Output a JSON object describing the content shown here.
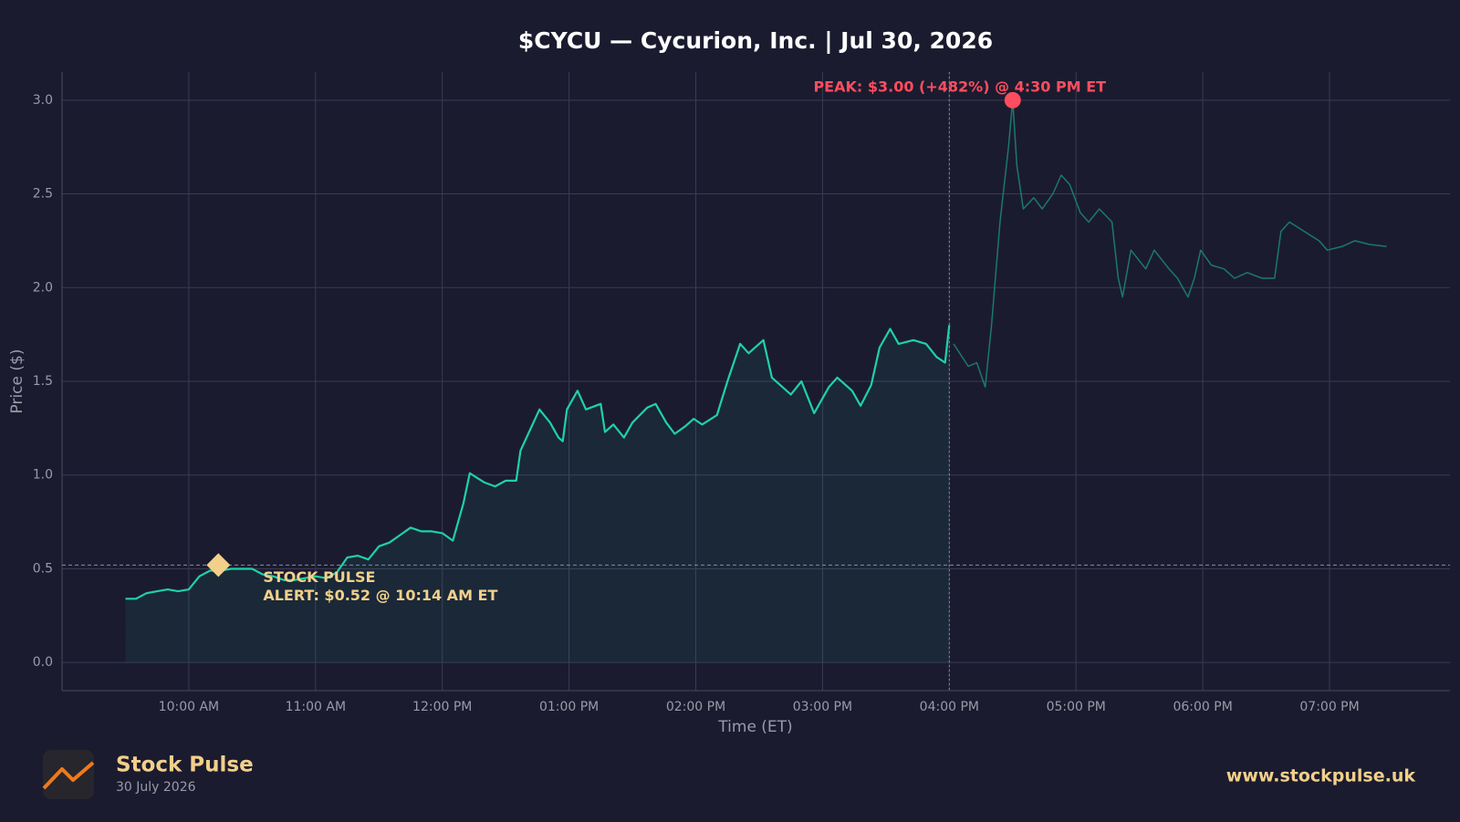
{
  "chart_data": {
    "type": "line",
    "title": "$CYCU — Cycurion, Inc.  |  Jul 30, 2026",
    "x_label": "Time (ET)",
    "y_label": "Price ($)",
    "xlim": [
      540,
      1197
    ],
    "ylim": [
      -0.15,
      3.15
    ],
    "xticks": [
      {
        "value": 600,
        "label": "10:00 AM"
      },
      {
        "value": 660,
        "label": "11:00 AM"
      },
      {
        "value": 720,
        "label": "12:00 PM"
      },
      {
        "value": 780,
        "label": "01:00 PM"
      },
      {
        "value": 840,
        "label": "02:00 PM"
      },
      {
        "value": 900,
        "label": "03:00 PM"
      },
      {
        "value": 960,
        "label": "04:00 PM"
      },
      {
        "value": 1020,
        "label": "05:00 PM"
      },
      {
        "value": 1080,
        "label": "06:00 PM"
      },
      {
        "value": 1140,
        "label": "07:00 PM"
      }
    ],
    "yticks": [
      {
        "value": 0,
        "label": "0.0"
      },
      0.5,
      {
        "value": 1,
        "label": "1.0"
      },
      1.5,
      {
        "value": 2,
        "label": "2.0"
      },
      2.5,
      {
        "value": 3,
        "label": "3.0"
      }
    ],
    "grid": true,
    "session_close": 960,
    "series": [
      {
        "color": "#1fd1a8",
        "fill": true,
        "x": [
          570,
          575,
          580,
          585,
          590,
          595,
          600,
          605,
          610,
          615,
          620,
          625,
          630,
          635,
          640,
          645,
          650,
          655,
          660,
          665,
          670,
          675,
          680,
          685,
          690,
          695,
          700,
          705,
          710,
          715,
          720,
          725,
          730,
          733,
          740,
          745,
          750,
          755,
          757,
          766,
          771,
          775,
          777,
          779,
          784,
          788,
          795,
          797,
          801,
          806,
          810,
          817,
          821,
          826,
          830,
          835,
          839,
          843,
          850,
          855,
          861,
          865,
          872,
          876,
          885,
          890,
          896,
          903,
          907,
          914,
          918,
          923,
          927,
          932,
          936,
          943,
          949,
          954,
          958,
          960
        ],
        "values": [
          0.34,
          0.34,
          0.37,
          0.38,
          0.39,
          0.38,
          0.39,
          0.46,
          0.49,
          0.49,
          0.5,
          0.5,
          0.5,
          0.47,
          0.46,
          0.44,
          0.44,
          0.45,
          0.46,
          0.45,
          0.48,
          0.56,
          0.57,
          0.55,
          0.62,
          0.64,
          0.68,
          0.72,
          0.7,
          0.7,
          0.69,
          0.65,
          0.85,
          1.01,
          0.96,
          0.94,
          0.97,
          0.97,
          1.13,
          1.35,
          1.28,
          1.2,
          1.18,
          1.35,
          1.45,
          1.35,
          1.38,
          1.23,
          1.27,
          1.2,
          1.28,
          1.36,
          1.38,
          1.28,
          1.22,
          1.26,
          1.3,
          1.27,
          1.32,
          1.5,
          1.7,
          1.65,
          1.72,
          1.52,
          1.43,
          1.5,
          1.33,
          1.47,
          1.52,
          1.45,
          1.37,
          1.48,
          1.68,
          1.78,
          1.7,
          1.72,
          1.7,
          1.63,
          1.6,
          1.8
        ]
      },
      {
        "color": "#1a7a68",
        "fill": false,
        "x": [
          962,
          969,
          973,
          977,
          980,
          984,
          988,
          990,
          992,
          995,
          1000,
          1004,
          1009,
          1013,
          1017,
          1022,
          1026,
          1031,
          1037,
          1040,
          1042,
          1046,
          1053,
          1057,
          1064,
          1068,
          1073,
          1076,
          1079,
          1084,
          1090,
          1095,
          1101,
          1108,
          1114,
          1117,
          1121,
          1128,
          1135,
          1139,
          1146,
          1152,
          1159,
          1167
        ],
        "values": [
          1.7,
          1.58,
          1.6,
          1.47,
          1.8,
          2.35,
          2.75,
          3.0,
          2.65,
          2.42,
          2.48,
          2.42,
          2.5,
          2.6,
          2.55,
          2.4,
          2.35,
          2.42,
          2.35,
          2.05,
          1.95,
          2.2,
          2.1,
          2.2,
          2.1,
          2.05,
          1.95,
          2.05,
          2.2,
          2.12,
          2.1,
          2.05,
          2.08,
          2.05,
          2.05,
          2.3,
          2.35,
          2.3,
          2.25,
          2.2,
          2.22,
          2.25,
          2.23,
          2.22
        ]
      }
    ],
    "annotations": [
      {
        "text": [
          "PEAK: $3.00 (+482%) @ 4:30 PM ET"
        ],
        "x": 990,
        "y": 3.0,
        "color": "#ff4d5e",
        "marker": "circle"
      },
      {
        "text": [
          "STOCK PULSE",
          "ALERT: $0.52 @ 10:14 AM ET"
        ],
        "x": 614,
        "y": 0.52,
        "color": "#f2d08a",
        "marker": "diamond"
      }
    ]
  },
  "footer": {
    "brand": "Stock Pulse",
    "date": "30 July 2026",
    "url": "www.stockpulse.uk"
  }
}
